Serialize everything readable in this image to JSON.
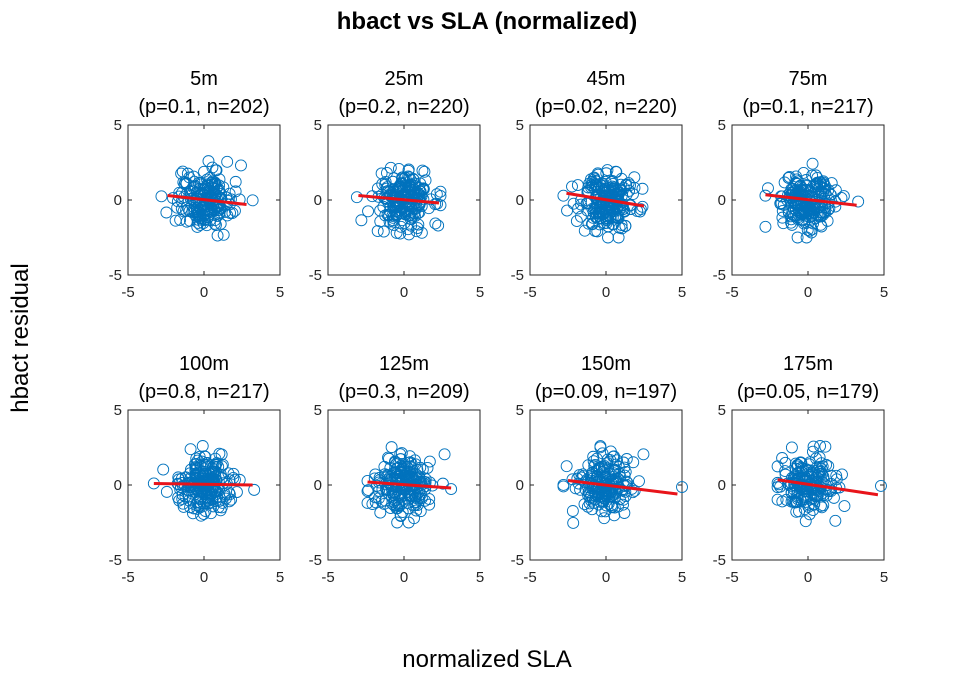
{
  "title": "hbact vs SLA (normalized)",
  "xlabel": "normalized SLA",
  "ylabel": "hbact residual",
  "colors": {
    "points": "#0072BD",
    "fit": "#E8141A",
    "axes": "#262626"
  },
  "chart_data": [
    {
      "type": "scatter",
      "title": "5m",
      "subtitle": "(p=0.1, n=202)",
      "xlim": [
        -5,
        5
      ],
      "ylim": [
        -5,
        5
      ],
      "xticks": [
        "-5",
        "0",
        "5"
      ],
      "yticks": [
        "-5",
        "0",
        "5"
      ],
      "fit_line": {
        "x": [
          -2.4,
          2.8
        ],
        "y": [
          0.3,
          -0.3
        ]
      },
      "extent": {
        "x": [
          -2.8,
          3.2
        ],
        "y": [
          -2.6,
          2.7
        ]
      },
      "n": 202,
      "points": []
    },
    {
      "type": "scatter",
      "title": "25m",
      "subtitle": "(p=0.2, n=220)",
      "xlim": [
        -5,
        5
      ],
      "ylim": [
        -5,
        5
      ],
      "xticks": [
        "-5",
        "0",
        "5"
      ],
      "yticks": [
        "-5",
        "0",
        "5"
      ],
      "fit_line": {
        "x": [
          -3.0,
          2.3
        ],
        "y": [
          0.3,
          -0.2
        ]
      },
      "extent": {
        "x": [
          -3.1,
          2.4
        ],
        "y": [
          -2.5,
          2.7
        ]
      },
      "n": 220,
      "points": []
    },
    {
      "type": "scatter",
      "title": "45m",
      "subtitle": "(p=0.02, n=220)",
      "xlim": [
        -5,
        5
      ],
      "ylim": [
        -5,
        5
      ],
      "xticks": [
        "-5",
        "0",
        "5"
      ],
      "yticks": [
        "-5",
        "0",
        "5"
      ],
      "fit_line": {
        "x": [
          -2.6,
          2.5
        ],
        "y": [
          0.45,
          -0.4
        ]
      },
      "extent": {
        "x": [
          -2.8,
          2.4
        ],
        "y": [
          -2.5,
          2.6
        ]
      },
      "n": 220,
      "points": []
    },
    {
      "type": "scatter",
      "title": "75m",
      "subtitle": "(p=0.1, n=217)",
      "xlim": [
        -5,
        5
      ],
      "ylim": [
        -5,
        5
      ],
      "xticks": [
        "-5",
        "0",
        "5"
      ],
      "yticks": [
        "-5",
        "0",
        "5"
      ],
      "fit_line": {
        "x": [
          -2.8,
          3.2
        ],
        "y": [
          0.35,
          -0.35
        ]
      },
      "extent": {
        "x": [
          -2.8,
          3.3
        ],
        "y": [
          -2.5,
          2.6
        ]
      },
      "n": 217,
      "points": []
    },
    {
      "type": "scatter",
      "title": "100m",
      "subtitle": "(p=0.8, n=217)",
      "xlim": [
        -5,
        5
      ],
      "ylim": [
        -5,
        5
      ],
      "xticks": [
        "-5",
        "0",
        "5"
      ],
      "yticks": [
        "-5",
        "0",
        "5"
      ],
      "fit_line": {
        "x": [
          -3.3,
          3.2
        ],
        "y": [
          0.1,
          0.0
        ]
      },
      "extent": {
        "x": [
          -3.3,
          3.3
        ],
        "y": [
          -2.5,
          2.6
        ]
      },
      "n": 217,
      "points": []
    },
    {
      "type": "scatter",
      "title": "125m",
      "subtitle": "(p=0.3, n=209)",
      "xlim": [
        -5,
        5
      ],
      "ylim": [
        -5,
        5
      ],
      "xticks": [
        "-5",
        "0",
        "5"
      ],
      "yticks": [
        "-5",
        "0",
        "5"
      ],
      "fit_line": {
        "x": [
          -2.4,
          3.1
        ],
        "y": [
          0.2,
          -0.2
        ]
      },
      "extent": {
        "x": [
          -2.4,
          3.1
        ],
        "y": [
          -2.5,
          2.6
        ]
      },
      "n": 209,
      "points": []
    },
    {
      "type": "scatter",
      "title": "150m",
      "subtitle": "(p=0.09, n=197)",
      "xlim": [
        -5,
        5
      ],
      "ylim": [
        -5,
        5
      ],
      "xticks": [
        "-5",
        "0",
        "5"
      ],
      "yticks": [
        "-5",
        "0",
        "5"
      ],
      "fit_line": {
        "x": [
          -2.5,
          4.7
        ],
        "y": [
          0.3,
          -0.6
        ]
      },
      "extent": {
        "x": [
          -2.8,
          5.0
        ],
        "y": [
          -2.6,
          2.6
        ]
      },
      "n": 197,
      "points": []
    },
    {
      "type": "scatter",
      "title": "175m",
      "subtitle": "(p=0.05, n=179)",
      "xlim": [
        -5,
        5
      ],
      "ylim": [
        -5,
        5
      ],
      "xticks": [
        "-5",
        "0",
        "5"
      ],
      "yticks": [
        "-5",
        "0",
        "5"
      ],
      "fit_line": {
        "x": [
          -2.0,
          4.6
        ],
        "y": [
          0.35,
          -0.65
        ]
      },
      "extent": {
        "x": [
          -2.0,
          4.8
        ],
        "y": [
          -2.6,
          2.6
        ]
      },
      "n": 179,
      "points": []
    }
  ]
}
